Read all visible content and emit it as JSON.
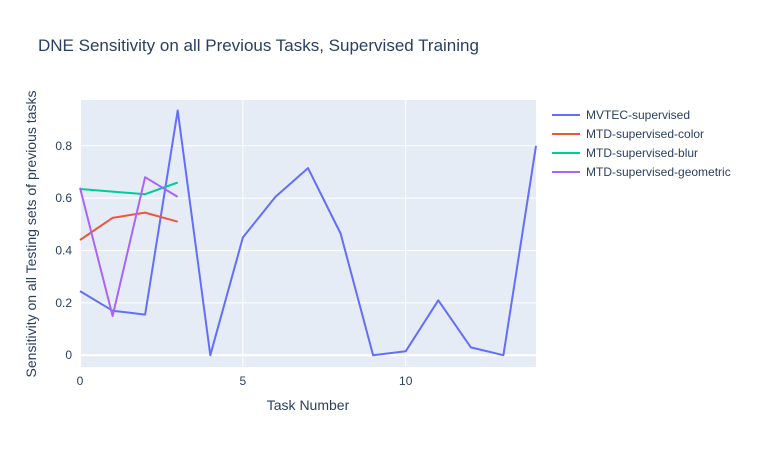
{
  "chart_data": {
    "type": "line",
    "title": "DNE Sensitivity on all Previous Tasks, Supervised Training",
    "xlabel": "Task Number",
    "ylabel": "Sensitivity on all Testing sets of previous tasks",
    "xlim": [
      0,
      14
    ],
    "ylim": [
      -0.045,
      0.975
    ],
    "x_ticks": [
      0,
      5,
      10
    ],
    "y_ticks": [
      0,
      0.2,
      0.4,
      0.6,
      0.8
    ],
    "grid": true,
    "legend_position": "right",
    "series": [
      {
        "name": "MVTEC-supervised",
        "color": "#636efa",
        "x": [
          0,
          1,
          2,
          3,
          4,
          5,
          6,
          7,
          8,
          9,
          10,
          11,
          12,
          13,
          14
        ],
        "values": [
          0.245,
          0.17,
          0.155,
          0.935,
          0.0,
          0.45,
          0.605,
          0.715,
          0.465,
          0.0,
          0.015,
          0.21,
          0.03,
          0.0,
          0.8
        ]
      },
      {
        "name": "MTD-supervised-color",
        "color": "#ef553b",
        "x": [
          0,
          1,
          2,
          3
        ],
        "values": [
          0.44,
          0.525,
          0.545,
          0.51
        ]
      },
      {
        "name": "MTD-supervised-blur",
        "color": "#00cc96",
        "x": [
          0,
          1,
          2,
          3
        ],
        "values": [
          0.635,
          0.625,
          0.615,
          0.66
        ]
      },
      {
        "name": "MTD-supervised-geometric",
        "color": "#ab63fa",
        "x": [
          0,
          1,
          2,
          3
        ],
        "values": [
          0.64,
          0.15,
          0.68,
          0.605
        ]
      }
    ]
  }
}
